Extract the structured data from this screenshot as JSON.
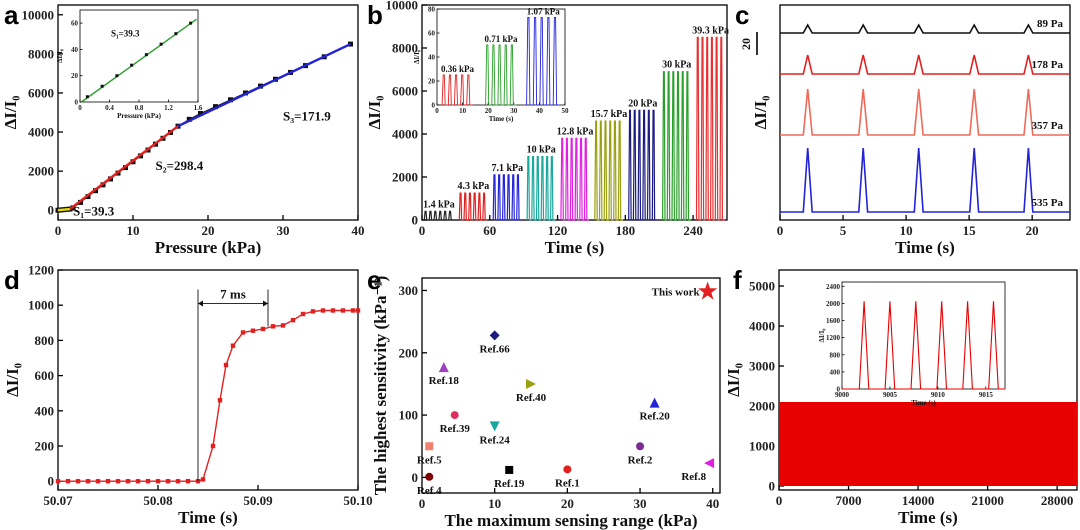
{
  "panels": {
    "a": {
      "label": "a",
      "xlabel": "Pressure (kPa)",
      "ylabel": "ΔI/I₀",
      "s1": "S₁=39.3",
      "s2": "S₂=298.4",
      "s3": "S₃=171.9",
      "inset_s1": "S₁=39.3",
      "inset_xlabel": "Pressure (kPa)",
      "inset_ylabel": "ΔI/I₀"
    },
    "b": {
      "label": "b",
      "xlabel": "Time (s)",
      "ylabel": "ΔI/I₀",
      "inset_xlabel": "Time (s)",
      "inset_ylabel": "ΔI/I₀"
    },
    "c": {
      "label": "c",
      "xlabel": "Time (s)",
      "ylabel": "ΔI/I₀",
      "scale": "20"
    },
    "d": {
      "label": "d",
      "xlabel": "Time (s)",
      "ylabel": "ΔI/I₀",
      "annotation": "7 ms"
    },
    "e": {
      "label": "e",
      "xlabel": "The maximum sensing range (kPa)",
      "ylabel": "The highest sensitivity (kPa⁻¹)"
    },
    "f": {
      "label": "f",
      "xlabel": "Time (s)",
      "ylabel": "ΔI/I₀",
      "inset_xlabel": "Time (s)",
      "inset_ylabel": "ΔI/I₀"
    }
  },
  "chart_data": [
    {
      "panel": "a",
      "type": "line",
      "xlim": [
        0,
        40
      ],
      "ylim": [
        -500,
        10500
      ],
      "xticks": [
        0,
        10,
        20,
        30,
        40
      ],
      "yticks": [
        0,
        2000,
        4000,
        6000,
        8000,
        10000
      ],
      "series": [
        {
          "x": [
            0,
            0.4,
            0.8,
            1.2,
            1.6,
            2,
            3,
            4,
            5,
            6,
            7,
            8,
            9,
            10,
            11,
            12,
            13,
            14,
            15,
            16,
            17.5,
            19,
            21,
            23,
            25,
            27,
            29,
            31,
            33,
            35.5,
            39
          ],
          "y": [
            0,
            15,
            30,
            45,
            60,
            120,
            400,
            700,
            1000,
            1300,
            1600,
            1900,
            2180,
            2480,
            2780,
            3080,
            3380,
            3680,
            3980,
            4300,
            4650,
            4950,
            5300,
            5650,
            6000,
            6350,
            6700,
            7050,
            7400,
            7850,
            8500
          ]
        }
      ],
      "fit_segments": [
        {
          "from": [
            0,
            0
          ],
          "to": [
            1.6,
            60
          ],
          "color": "#e8e000"
        },
        {
          "from": [
            1.6,
            60
          ],
          "to": [
            16,
            4300
          ],
          "color": "#e32020"
        },
        {
          "from": [
            16,
            4300
          ],
          "to": [
            39,
            8500
          ],
          "color": "#2323d8"
        }
      ],
      "inset": {
        "xlim": [
          0,
          1.6
        ],
        "ylim": [
          0,
          70
        ],
        "xticks": [
          0,
          0.4,
          0.8,
          1.2,
          1.6
        ],
        "yticks": [
          0,
          20,
          40,
          60
        ],
        "x": [
          0.1,
          0.3,
          0.5,
          0.7,
          0.9,
          1.1,
          1.3,
          1.5
        ],
        "y": [
          4,
          12,
          20,
          28,
          36,
          44,
          52,
          60
        ]
      }
    },
    {
      "panel": "b",
      "type": "line",
      "xlim": [
        0,
        270
      ],
      "ylim": [
        0,
        10000
      ],
      "xticks": [
        0,
        60,
        120,
        180,
        240
      ],
      "yticks": [
        0,
        2000,
        4000,
        6000,
        8000,
        10000
      ],
      "groups": [
        {
          "label": "1.4 kPa",
          "start": 2,
          "end": 28,
          "peak": 400,
          "color": "#222222"
        },
        {
          "label": "4.3 kPa",
          "start": 33,
          "end": 58,
          "peak": 1250,
          "color": "#e32020"
        },
        {
          "label": "7.1 kPa",
          "start": 63,
          "end": 88,
          "peak": 2100,
          "color": "#2323d8"
        },
        {
          "label": "10 kPa",
          "start": 93,
          "end": 118,
          "peak": 2950,
          "color": "#18a89c"
        },
        {
          "label": "12.8 kPa",
          "start": 123,
          "end": 148,
          "peak": 3800,
          "color": "#e020e0"
        },
        {
          "label": "15.7 kPa",
          "start": 153,
          "end": 178,
          "peak": 4600,
          "color": "#9aa010"
        },
        {
          "label": "20 kPa",
          "start": 183,
          "end": 208,
          "peak": 5100,
          "color": "#1a1a80"
        },
        {
          "label": "30 kPa",
          "start": 213,
          "end": 238,
          "peak": 6900,
          "color": "#2aa02a"
        },
        {
          "label": "39.3 kPa",
          "start": 243,
          "end": 268,
          "peak": 8500,
          "color": "#e83030"
        }
      ],
      "inset": {
        "xlim": [
          0,
          50
        ],
        "ylim": [
          0,
          80
        ],
        "xticks": [
          0,
          10,
          20,
          30,
          40,
          50
        ],
        "yticks": [
          0,
          20,
          40,
          60,
          80
        ],
        "groups": [
          {
            "label": "0.36 kPa",
            "start": 2,
            "end": 14,
            "peak": 25,
            "color": "#e32020"
          },
          {
            "label": "0.71 kPa",
            "start": 19,
            "end": 31,
            "peak": 50,
            "color": "#2aa02a"
          },
          {
            "label": "1.07 kPa",
            "start": 35,
            "end": 48,
            "peak": 73,
            "color": "#2323d8"
          }
        ]
      }
    },
    {
      "panel": "c",
      "type": "line",
      "xlim": [
        0,
        23
      ],
      "xticks": [
        0,
        5,
        10,
        15,
        20
      ],
      "peak_times": [
        2.2,
        6.6,
        11.0,
        15.4,
        19.7
      ],
      "series": [
        {
          "name": "89 Pa",
          "amp": 8,
          "color": "#111111"
        },
        {
          "name": "178 Pa",
          "amp": 19,
          "color": "#e32020"
        },
        {
          "name": "357 Pa",
          "amp": 46,
          "color": "#f06a5a"
        },
        {
          "name": "535 Pa",
          "amp": 64,
          "color": "#2323d8"
        }
      ]
    },
    {
      "panel": "d",
      "type": "line",
      "xlim": [
        50.07,
        50.1
      ],
      "ylim": [
        -50,
        1200
      ],
      "xticks": [
        50.07,
        50.08,
        50.09,
        50.1
      ],
      "yticks": [
        0,
        200,
        400,
        600,
        800,
        1000,
        1200
      ],
      "x": [
        50.07,
        50.071,
        50.072,
        50.073,
        50.074,
        50.075,
        50.076,
        50.077,
        50.078,
        50.079,
        50.08,
        50.081,
        50.082,
        50.083,
        50.084,
        50.0845,
        50.0855,
        50.0862,
        50.0868,
        50.0875,
        50.0885,
        50.0895,
        50.0905,
        50.0915,
        50.0925,
        50.0935,
        50.0945,
        50.0955,
        50.0965,
        50.0975,
        50.0985,
        50.0995,
        50.1
      ],
      "y": [
        0,
        0,
        0,
        0,
        0,
        0,
        0,
        0,
        0,
        0,
        0,
        0,
        0,
        0,
        0,
        10,
        200,
        460,
        660,
        770,
        845,
        855,
        865,
        880,
        885,
        915,
        950,
        965,
        970,
        970,
        970,
        970,
        970
      ],
      "bracket": {
        "from": 50.084,
        "to": 50.091,
        "y": 1010
      }
    },
    {
      "panel": "e",
      "type": "scatter",
      "xlim": [
        0,
        41
      ],
      "ylim": [
        -25,
        320
      ],
      "xticks": [
        0,
        10,
        20,
        30,
        40
      ],
      "yticks": [
        0,
        100,
        200,
        300
      ],
      "points": [
        {
          "label": "This work",
          "x": 39.3,
          "y": 298.4,
          "marker": "star",
          "color": "#e32020"
        },
        {
          "label": "Ref.66",
          "x": 10,
          "y": 228,
          "marker": "diamond",
          "color": "#1a1a80"
        },
        {
          "label": "Ref.18",
          "x": 3,
          "y": 177,
          "marker": "tri-up",
          "color": "#a040c0"
        },
        {
          "label": "Ref.40",
          "x": 15,
          "y": 150,
          "marker": "tri-right",
          "color": "#9aa010"
        },
        {
          "label": "Ref.39",
          "x": 4.5,
          "y": 100,
          "marker": "circle",
          "color": "#e03060"
        },
        {
          "label": "Ref.24",
          "x": 10,
          "y": 82,
          "marker": "tri-down",
          "color": "#18a8a0"
        },
        {
          "label": "Ref.20",
          "x": 32,
          "y": 120,
          "marker": "tri-up",
          "color": "#2323d8"
        },
        {
          "label": "Ref.5",
          "x": 1,
          "y": 50,
          "marker": "square",
          "color": "#f08070"
        },
        {
          "label": "Ref.4",
          "x": 1,
          "y": 1,
          "marker": "circle",
          "color": "#800000"
        },
        {
          "label": "Ref.19",
          "x": 12,
          "y": 12,
          "marker": "square",
          "color": "#000000"
        },
        {
          "label": "Ref.1",
          "x": 20,
          "y": 13,
          "marker": "circle",
          "color": "#e32020"
        },
        {
          "label": "Ref.2",
          "x": 30,
          "y": 50,
          "marker": "circle",
          "color": "#7a2a90"
        },
        {
          "label": "Ref.8",
          "x": 39.5,
          "y": 23,
          "marker": "tri-left",
          "color": "#e020e0"
        }
      ]
    },
    {
      "panel": "f",
      "type": "area",
      "xlim": [
        0,
        30000
      ],
      "ylim": [
        -100,
        5400
      ],
      "xticks": [
        0,
        7000,
        14000,
        21000,
        28000
      ],
      "yticks": [
        0,
        1000,
        2000,
        3000,
        4000,
        5000
      ],
      "band_max": 2100,
      "color": "#e80000",
      "inset": {
        "xlim": [
          9000,
          9017
        ],
        "ylim": [
          0,
          2500
        ],
        "xticks": [
          9000,
          9005,
          9010,
          9015
        ],
        "yticks": [
          0,
          400,
          800,
          1200,
          1600,
          2000,
          2400
        ],
        "peak_times": [
          9002.3,
          9005.0,
          9007.7,
          9010.4,
          9013.1,
          9015.8
        ],
        "peak": 2050,
        "color": "#e80000"
      }
    }
  ]
}
